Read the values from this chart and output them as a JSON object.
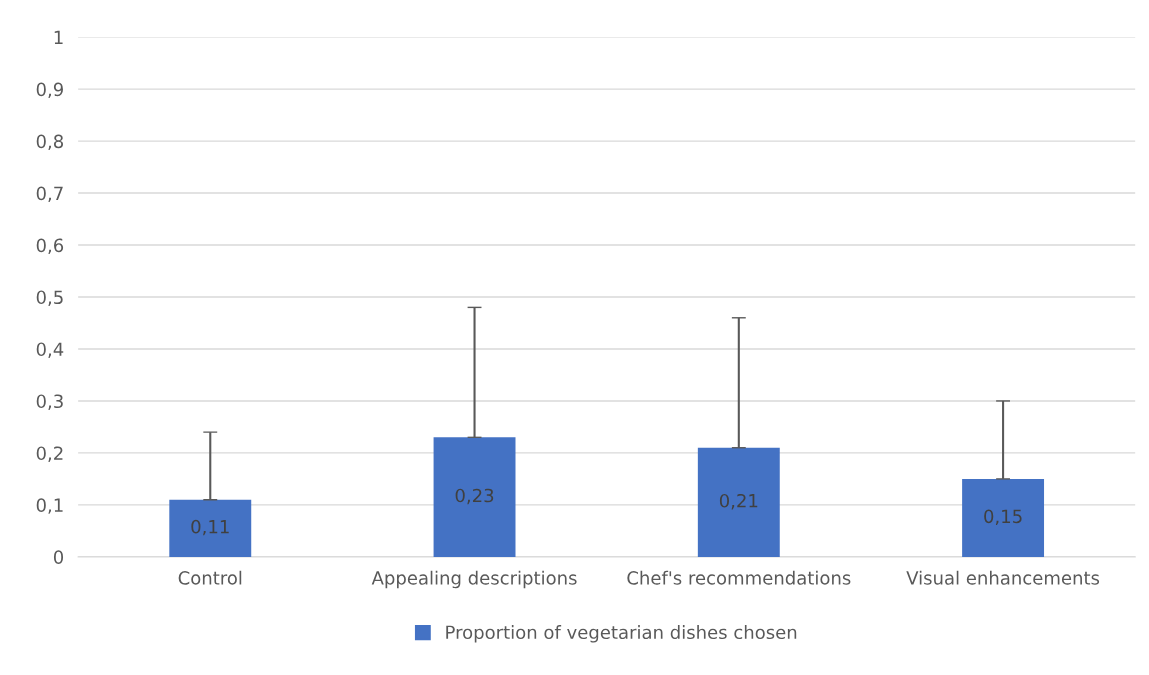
{
  "chart_data": {
    "type": "bar",
    "categories": [
      "Control",
      "Appealing descriptions",
      "Chef's recommendations",
      "Visual enhancements"
    ],
    "series": [
      {
        "name": "Proportion of vegetarian dishes chosen",
        "color": "#4472c4",
        "values": [
          0.11,
          0.23,
          0.21,
          0.15
        ],
        "value_labels": [
          "0,11",
          "0,23",
          "0,21",
          "0,15"
        ],
        "errors": [
          [
            0.11,
            0.24
          ],
          [
            0.23,
            0.48
          ],
          [
            0.21,
            0.46
          ],
          [
            0.15,
            0.3
          ]
        ]
      }
    ],
    "ylim": [
      0,
      1
    ],
    "yticks": [
      {
        "value": 0,
        "label": "0"
      },
      {
        "value": 0.1,
        "label": "0,1"
      },
      {
        "value": 0.2,
        "label": "0,2"
      },
      {
        "value": 0.3,
        "label": "0,3"
      },
      {
        "value": 0.4,
        "label": "0,4"
      },
      {
        "value": 0.5,
        "label": "0,5"
      },
      {
        "value": 0.6,
        "label": "0,6"
      },
      {
        "value": 0.7,
        "label": "0,7"
      },
      {
        "value": 0.8,
        "label": "0,8"
      },
      {
        "value": 0.9,
        "label": "0,9"
      },
      {
        "value": 1,
        "label": "1"
      }
    ],
    "grid": "y",
    "legend": "bottom"
  }
}
